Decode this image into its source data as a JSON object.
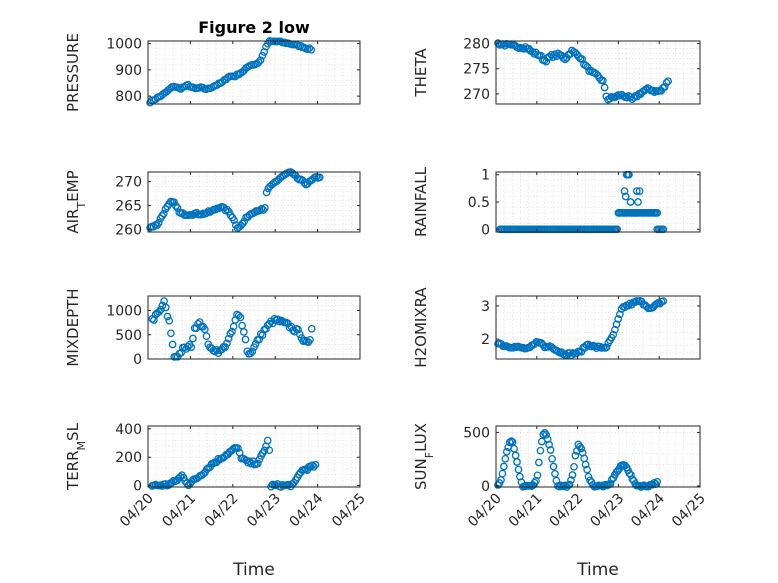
{
  "chart_data": [
    {
      "type": "scatter",
      "title": "Figure 2 low",
      "ylabel": "PRESSURE",
      "ylim": [
        770,
        1010
      ],
      "yticks": [
        800,
        900,
        1000
      ],
      "xlim": [
        0,
        5
      ],
      "xtick_labels": [
        "04/20",
        "04/21",
        "04/22",
        "04/23",
        "04/24",
        "04/25"
      ],
      "show_xtick_labels": false,
      "xlabel": "",
      "grid": true,
      "series": [
        {
          "color": "#0072BD",
          "marker": "circle-open",
          "anchors": [
            [
              0.05,
              778
            ],
            [
              0.35,
              805
            ],
            [
              0.6,
              838
            ],
            [
              0.75,
              828
            ],
            [
              0.95,
              842
            ],
            [
              1.1,
              828
            ],
            [
              1.25,
              832
            ],
            [
              1.4,
              826
            ],
            [
              1.55,
              838
            ],
            [
              1.75,
              852
            ],
            [
              1.9,
              875
            ],
            [
              2.05,
              876
            ],
            [
              2.25,
              895
            ],
            [
              2.4,
              918
            ],
            [
              2.55,
              922
            ],
            [
              2.65,
              935
            ],
            [
              2.78,
              985
            ],
            [
              2.85,
              1008
            ],
            [
              3.05,
              1008
            ],
            [
              3.35,
              1000
            ],
            [
              3.6,
              990
            ],
            [
              3.75,
              982
            ],
            [
              3.85,
              978
            ]
          ],
          "n": 90,
          "noise": 3
        }
      ]
    },
    {
      "type": "scatter",
      "title": "",
      "ylabel": "THETA",
      "ylim": [
        268,
        280.5
      ],
      "yticks": [
        270,
        275,
        280
      ],
      "xlim": [
        0,
        5
      ],
      "xtick_labels": [
        "04/20",
        "04/21",
        "04/22",
        "04/23",
        "04/24",
        "04/25"
      ],
      "show_xtick_labels": false,
      "xlabel": "",
      "grid": true,
      "series": [
        {
          "color": "#0072BD",
          "marker": "circle-open",
          "anchors": [
            [
              0.05,
              280
            ],
            [
              0.4,
              279.5
            ],
            [
              0.75,
              279.2
            ],
            [
              0.9,
              278.2
            ],
            [
              1.05,
              277.8
            ],
            [
              1.2,
              276.5
            ],
            [
              1.35,
              277.5
            ],
            [
              1.55,
              277.8
            ],
            [
              1.7,
              277
            ],
            [
              1.85,
              278.5
            ],
            [
              2.05,
              277.5
            ],
            [
              2.2,
              275.5
            ],
            [
              2.35,
              274.2
            ],
            [
              2.5,
              273.5
            ],
            [
              2.62,
              272.5
            ],
            [
              2.72,
              269
            ],
            [
              2.85,
              269.2
            ],
            [
              3.05,
              269.8
            ],
            [
              3.25,
              269.3
            ],
            [
              3.35,
              268.8
            ],
            [
              3.45,
              269.6
            ],
            [
              3.6,
              270.5
            ],
            [
              3.75,
              271
            ],
            [
              3.9,
              270.5
            ],
            [
              4.05,
              270.6
            ],
            [
              4.15,
              271.6
            ],
            [
              4.22,
              272.8
            ]
          ],
          "n": 100,
          "noise": 0.3
        }
      ]
    },
    {
      "type": "scatter",
      "title": "",
      "ylabel": "AIR_TEMP",
      "ylim": [
        259.5,
        272
      ],
      "yticks": [
        260,
        265,
        270
      ],
      "xlim": [
        0,
        5
      ],
      "xtick_labels": [
        "04/20",
        "04/21",
        "04/22",
        "04/23",
        "04/24",
        "04/25"
      ],
      "show_xtick_labels": false,
      "xlabel": "",
      "grid": true,
      "series": [
        {
          "color": "#0072BD",
          "marker": "circle-open",
          "anchors": [
            [
              0.05,
              260.5
            ],
            [
              0.22,
              261
            ],
            [
              0.4,
              264
            ],
            [
              0.55,
              265.8
            ],
            [
              0.65,
              265.3
            ],
            [
              0.75,
              263.3
            ],
            [
              0.9,
              263.2
            ],
            [
              1.1,
              263.3
            ],
            [
              1.3,
              263.3
            ],
            [
              1.5,
              263.8
            ],
            [
              1.7,
              264.8
            ],
            [
              1.9,
              263.8
            ],
            [
              2.0,
              262.5
            ],
            [
              2.1,
              260.5
            ],
            [
              2.2,
              260.8
            ],
            [
              2.35,
              262.8
            ],
            [
              2.5,
              263.8
            ],
            [
              2.65,
              264.2
            ],
            [
              2.75,
              263.8
            ],
            [
              2.8,
              268
            ],
            [
              2.95,
              269.5
            ],
            [
              3.15,
              271
            ],
            [
              3.35,
              272
            ],
            [
              3.55,
              270.5
            ],
            [
              3.75,
              269.5
            ],
            [
              3.95,
              270.8
            ],
            [
              4.05,
              271
            ]
          ],
          "n": 100,
          "noise": 0.25
        }
      ]
    },
    {
      "type": "scatter",
      "title": "",
      "ylabel": "RAINFALL",
      "ylim": [
        -0.05,
        1.05
      ],
      "yticks": [
        0,
        0.5,
        1
      ],
      "xlim": [
        0,
        5
      ],
      "xtick_labels": [
        "04/20",
        "04/21",
        "04/22",
        "04/23",
        "04/24",
        "04/25"
      ],
      "show_xtick_labels": false,
      "xlabel": "",
      "grid": true,
      "series": [
        {
          "color": "#0072BD",
          "marker": "circle-open",
          "segments": [
            {
              "x0": 0.1,
              "x1": 2.97,
              "y": 0,
              "n": 80
            },
            {
              "x0": 3.0,
              "x1": 3.95,
              "y": 0.3,
              "n": 28
            },
            {
              "x0": 3.95,
              "x1": 4.1,
              "y": 0,
              "n": 5
            }
          ],
          "points": [
            [
              3.2,
              1.0
            ],
            [
              3.23,
              1.0
            ],
            [
              3.26,
              1.0
            ],
            [
              3.15,
              0.7
            ],
            [
              3.18,
              0.6
            ],
            [
              3.3,
              0.5
            ],
            [
              3.45,
              0.7
            ],
            [
              3.52,
              0.7
            ],
            [
              3.48,
              0.5
            ]
          ]
        }
      ]
    },
    {
      "type": "scatter",
      "title": "",
      "ylabel": "MIXDEPTH",
      "ylim": [
        0,
        1300
      ],
      "yticks": [
        0,
        500,
        1000
      ],
      "xlim": [
        0,
        5
      ],
      "xtick_labels": [
        "04/20",
        "04/21",
        "04/22",
        "04/23",
        "04/24",
        "04/25"
      ],
      "show_xtick_labels": false,
      "xlabel": "",
      "grid": true,
      "series": [
        {
          "color": "#0072BD",
          "marker": "circle-open",
          "anchors": [
            [
              0.1,
              800
            ],
            [
              0.2,
              900
            ],
            [
              0.3,
              1000
            ],
            [
              0.38,
              1200
            ],
            [
              0.45,
              900
            ],
            [
              0.52,
              700
            ],
            [
              0.56,
              400
            ],
            [
              0.62,
              50
            ],
            [
              0.72,
              80
            ],
            [
              0.82,
              200
            ],
            [
              0.92,
              230
            ],
            [
              1.02,
              280
            ],
            [
              1.1,
              600
            ],
            [
              1.2,
              800
            ],
            [
              1.3,
              650
            ],
            [
              1.38,
              500
            ],
            [
              1.45,
              200
            ],
            [
              1.55,
              200
            ],
            [
              1.7,
              150
            ],
            [
              1.8,
              250
            ],
            [
              1.9,
              400
            ],
            [
              2.0,
              600
            ],
            [
              2.1,
              900
            ],
            [
              2.18,
              850
            ],
            [
              2.26,
              600
            ],
            [
              2.36,
              80
            ],
            [
              2.48,
              200
            ],
            [
              2.6,
              400
            ],
            [
              2.75,
              600
            ],
            [
              2.9,
              750
            ],
            [
              3.0,
              800
            ],
            [
              3.1,
              780
            ],
            [
              3.3,
              700
            ],
            [
              3.45,
              600
            ],
            [
              3.58,
              550
            ],
            [
              3.68,
              350
            ],
            [
              3.8,
              300
            ],
            [
              3.86,
              650
            ]
          ],
          "n": 95,
          "noise": 45
        }
      ]
    },
    {
      "type": "scatter",
      "title": "",
      "ylabel": "H2OMIXRA",
      "ylim": [
        1.4,
        3.3
      ],
      "yticks": [
        2,
        3
      ],
      "xlim": [
        0,
        5
      ],
      "xtick_labels": [
        "04/20",
        "04/21",
        "04/22",
        "04/23",
        "04/24",
        "04/25"
      ],
      "show_xtick_labels": false,
      "xlabel": "",
      "grid": true,
      "series": [
        {
          "color": "#0072BD",
          "marker": "circle-open",
          "anchors": [
            [
              0.05,
              1.9
            ],
            [
              0.2,
              1.8
            ],
            [
              0.55,
              1.75
            ],
            [
              0.8,
              1.7
            ],
            [
              1.05,
              1.95
            ],
            [
              1.2,
              1.75
            ],
            [
              1.35,
              1.8
            ],
            [
              1.5,
              1.65
            ],
            [
              1.7,
              1.55
            ],
            [
              1.85,
              1.55
            ],
            [
              2.05,
              1.6
            ],
            [
              2.25,
              1.85
            ],
            [
              2.45,
              1.75
            ],
            [
              2.7,
              1.75
            ],
            [
              2.8,
              1.95
            ],
            [
              2.9,
              2.2
            ],
            [
              3.0,
              2.6
            ],
            [
              3.1,
              2.95
            ],
            [
              3.3,
              3.05
            ],
            [
              3.5,
              3.15
            ],
            [
              3.65,
              3.05
            ],
            [
              3.8,
              2.9
            ],
            [
              3.95,
              3.05
            ],
            [
              4.1,
              3.15
            ]
          ],
          "n": 100,
          "noise": 0.04
        }
      ]
    },
    {
      "type": "scatter",
      "title": "",
      "ylabel": "TERR_MSL",
      "ylim": [
        -10,
        420
      ],
      "yticks": [
        0,
        200,
        400
      ],
      "xlim": [
        0,
        5
      ],
      "xtick_labels": [
        "04/20",
        "04/21",
        "04/22",
        "04/23",
        "04/24",
        "04/25"
      ],
      "show_xtick_labels": true,
      "xlabel": "Time",
      "grid": true,
      "series": [
        {
          "color": "#0072BD",
          "marker": "circle-open",
          "anchors": [
            [
              0.1,
              0
            ],
            [
              0.45,
              5
            ],
            [
              0.65,
              30
            ],
            [
              0.8,
              70
            ],
            [
              0.95,
              10
            ],
            [
              1.1,
              40
            ],
            [
              1.3,
              90
            ],
            [
              1.5,
              150
            ],
            [
              1.75,
              200
            ],
            [
              1.9,
              230
            ],
            [
              2.1,
              270
            ],
            [
              2.2,
              200
            ],
            [
              2.35,
              160
            ],
            [
              2.6,
              160
            ],
            [
              2.75,
              250
            ],
            [
              2.82,
              320
            ],
            [
              2.86,
              250
            ],
            [
              2.9,
              0
            ],
            [
              3.3,
              0
            ],
            [
              3.45,
              10
            ],
            [
              3.6,
              100
            ],
            [
              3.75,
              120
            ],
            [
              3.95,
              140
            ]
          ],
          "n": 100,
          "noise": 12
        }
      ]
    },
    {
      "type": "scatter",
      "title": "",
      "ylabel": "SUN_FLUX",
      "ylim": [
        -10,
        560
      ],
      "yticks": [
        0,
        500
      ],
      "xlim": [
        0,
        5
      ],
      "xtick_labels": [
        "04/20",
        "04/21",
        "04/22",
        "04/23",
        "04/24",
        "04/25"
      ],
      "show_xtick_labels": true,
      "xlabel": "Time",
      "grid": true,
      "series": [
        {
          "color": "#0072BD",
          "marker": "circle-open",
          "anchors": [
            [
              0.05,
              0
            ],
            [
              0.12,
              50
            ],
            [
              0.2,
              200
            ],
            [
              0.28,
              350
            ],
            [
              0.35,
              420
            ],
            [
              0.42,
              400
            ],
            [
              0.5,
              250
            ],
            [
              0.58,
              100
            ],
            [
              0.65,
              0
            ],
            [
              0.9,
              0
            ],
            [
              1.0,
              50
            ],
            [
              1.08,
              300
            ],
            [
              1.15,
              480
            ],
            [
              1.22,
              500
            ],
            [
              1.3,
              400
            ],
            [
              1.38,
              250
            ],
            [
              1.45,
              100
            ],
            [
              1.52,
              0
            ],
            [
              1.8,
              0
            ],
            [
              1.88,
              100
            ],
            [
              1.95,
              300
            ],
            [
              2.02,
              380
            ],
            [
              2.1,
              350
            ],
            [
              2.18,
              220
            ],
            [
              2.28,
              80
            ],
            [
              2.38,
              0
            ],
            [
              2.72,
              0
            ],
            [
              2.8,
              20
            ],
            [
              2.9,
              100
            ],
            [
              3.0,
              150
            ],
            [
              3.1,
              200
            ],
            [
              3.2,
              180
            ],
            [
              3.3,
              100
            ],
            [
              3.4,
              20
            ],
            [
              3.5,
              0
            ],
            [
              3.72,
              0
            ],
            [
              3.85,
              20
            ],
            [
              3.95,
              30
            ]
          ],
          "n": 110,
          "noise": 10
        }
      ]
    }
  ]
}
